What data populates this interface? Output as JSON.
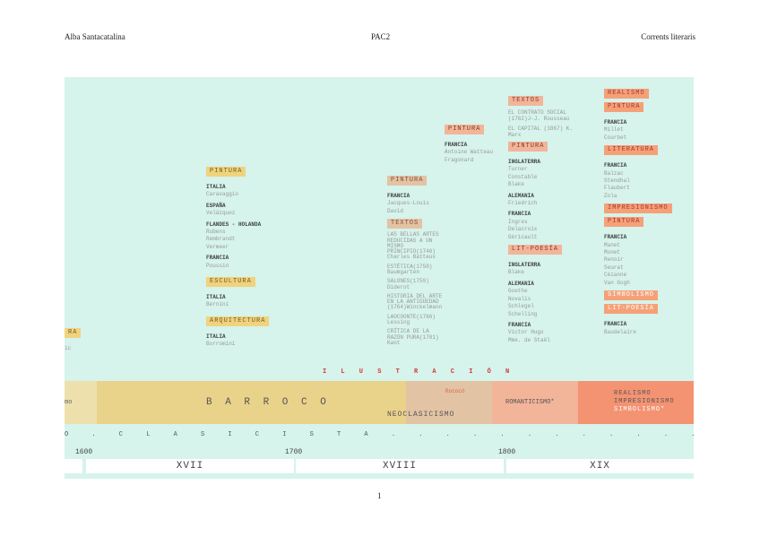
{
  "header": {
    "author": "Alba Santacatalina",
    "center": "PAC2",
    "right": "Corrents literaris"
  },
  "footer": {
    "page": "1"
  },
  "columns": {
    "c0": {
      "frag_tag": "RA",
      "frag_text": "ic"
    },
    "c1": {
      "pintura": "PINTURA",
      "italia": "ITALIA",
      "caravaggio": "Caravaggio",
      "espana": "ESPAÑA",
      "velazquez": "Velázquez",
      "flandes": "FLANDES - HOLANDA",
      "rubens": "Rubens",
      "rembrandt": "Rembrandt",
      "vermeer": "Vermeer",
      "francia": "FRANCIA",
      "poussin": "Poussin",
      "escultura": "ESCULTURA",
      "italia2": "ITALIA",
      "bernini": "Bernini",
      "arquitectura": "ARQUITECTURA",
      "italia3": "ITALIA",
      "borromini": "Borromini"
    },
    "c2": {
      "pintura": "PINTURA",
      "francia": "FRANCIA",
      "david": "Jacques-Louis David",
      "textos": "TEXTOS",
      "t1": "LAS BELLAS ARTES REDUCIDAS A UN MISMO PRINCIPIO(1746) Charles Batteux",
      "t2": "ESTÉTICA(1750) Baumgarten",
      "t3": "SALONES(1759) Diderot",
      "t4": "HISTORIA DEL ARTE EN LA ANTIGÜEDAD (1764)Winckelmann",
      "t5": "LAOCOONTE(1766) Lessing",
      "t6": "CRÍTICA DE LA RAZÓN PURA(1781) Kant"
    },
    "c3": {
      "pintura": "PINTURA",
      "francia": "FRANCIA",
      "watteau": "Antoine Watteau",
      "fragonard": "Fragonard"
    },
    "c4": {
      "textos": "TEXTOS",
      "t1": "EL CONTRATO SOCIAL (1762)J-J. Rousseau",
      "t2": "EL CAPITAL (1867) K. Marx",
      "pintura": "PINTURA",
      "inglaterra": "INGLATERRA",
      "turner": "Turner",
      "constable": "Constable",
      "blake": "Blake",
      "alemania": "ALEMANIA",
      "friedrich": "Friedrich",
      "francia": "FRANCIA",
      "ingres": "Ingres",
      "delacroix": "Delacroix",
      "gericault": "Géricault",
      "litpoesia": "LIT-POESÍA",
      "inglaterra2": "INGLATERRA",
      "blake2": "Blake",
      "alemania2": "ALEMANIA",
      "goethe": "Goethe",
      "novalis": "Novalis",
      "schlegel": "Schlegel",
      "schelling": "Schelling",
      "francia2": "FRANCIA",
      "hugo": "Victor Hugo",
      "stael": "Mme. de Staël"
    },
    "c5": {
      "realismo": "REALISMO",
      "pintura": "PINTURA",
      "francia": "FRANCIA",
      "millet": "Millet",
      "courbet": "Courbet",
      "literatura": "LITERATURA",
      "francia2": "FRANCIA",
      "balzac": "Balzac",
      "stendhal": "Stendhal",
      "flaubert": "Flaubert",
      "zola": "Zola",
      "impresionismo": "IMPRESIONISMO",
      "pintura2": "PINTURA",
      "francia3": "FRANCIA",
      "manet": "Manet",
      "monet": "Monet",
      "renoir": "Renoir",
      "seurat": "Seurat",
      "cezanne": "Cézanne",
      "vangogh": "Van Gogh",
      "simbolismo": "SIMBOLISMO",
      "litpoesia": "LIT-POESÍA",
      "francia4": "FRANCIA",
      "baudelaire": "Baudelaire"
    }
  },
  "ilustracion": "I L U S T R A C I Ó N",
  "bands": {
    "left_frag": "mo",
    "barroco": "B A R R O C O",
    "rococo": "Rococó",
    "neoclasicismo": "NEOCLASICISMO",
    "romanticismo": "ROMANTICISMO*",
    "realismo": "REALISMO",
    "impresionismo": "IMPRESIONISMO",
    "simbolismo": "SIMBOLISMO*"
  },
  "clasicista": "O . C L A S I C I S T A . . . . . . . . . . . . . . . . . ]",
  "years": {
    "y1600": "1600",
    "y1700": "1700",
    "y1800": "1800"
  },
  "centuries": {
    "xvii": "XVII",
    "xviii": "XVIII",
    "xix": "XIX"
  },
  "colors": {
    "panel": "#d6f3ec",
    "barroco": "#e9d28a",
    "rococo": "#e2c3a3",
    "romanticismo": "#f2b59a",
    "realismo": "#f39372"
  }
}
